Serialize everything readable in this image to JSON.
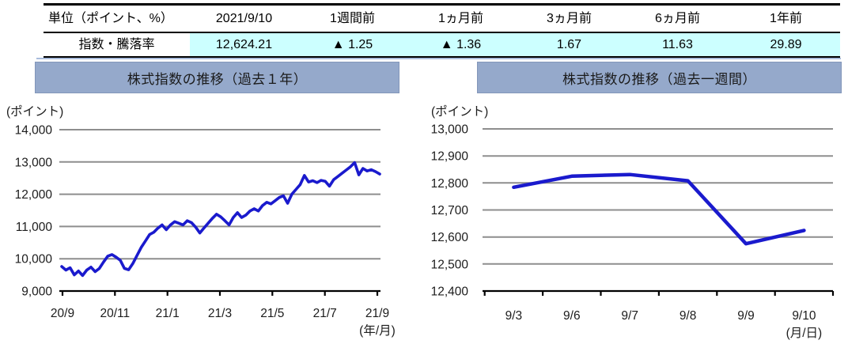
{
  "table": {
    "headers": [
      "単位（ポイント、%）",
      "2021/9/10",
      "1週間前",
      "1ヵ月前",
      "3ヵ月前",
      "6ヵ月前",
      "1年前"
    ],
    "row": {
      "label": "指数・騰落率",
      "values": [
        "12,624.21",
        "▲ 1.25",
        "▲ 1.36",
        "1.67",
        "11.63",
        "29.89"
      ]
    }
  },
  "colors": {
    "accent_bar": "#95a9cb",
    "highlight": "#ccffff",
    "line": "#1a1acd",
    "grid": "#8e8e8e",
    "axis": "#000000"
  },
  "chart_data": [
    {
      "type": "line",
      "title": "株式指数の推移（過去１年）",
      "y_axis_unit": "(ポイント)",
      "x_axis_unit": "(年/月)",
      "x_tick_labels": [
        "20/9",
        "20/11",
        "21/1",
        "21/3",
        "21/5",
        "21/7",
        "21/9"
      ],
      "y_ticks": [
        9000,
        10000,
        11000,
        12000,
        13000,
        14000
      ],
      "ylim": [
        9000,
        14000
      ],
      "grid": true,
      "legend": false,
      "series": [
        {
          "name": "株式指数",
          "values": [
            9760,
            9650,
            9720,
            9500,
            9620,
            9480,
            9650,
            9740,
            9600,
            9700,
            9900,
            10080,
            10130,
            10050,
            9950,
            9700,
            9660,
            9850,
            10100,
            10350,
            10550,
            10750,
            10820,
            10950,
            11050,
            10900,
            11050,
            11150,
            11100,
            11050,
            11180,
            11120,
            10980,
            10800,
            10950,
            11100,
            11250,
            11380,
            11300,
            11180,
            11050,
            11280,
            11430,
            11280,
            11350,
            11480,
            11550,
            11480,
            11650,
            11750,
            11700,
            11800,
            11900,
            11950,
            11720,
            12000,
            12150,
            12300,
            12580,
            12380,
            12420,
            12360,
            12430,
            12400,
            12250,
            12450,
            12550,
            12650,
            12750,
            12850,
            12980,
            12600,
            12800,
            12720,
            12760,
            12700,
            12624.21
          ]
        }
      ]
    },
    {
      "type": "line",
      "title": "株式指数の推移（過去一週間）",
      "y_axis_unit": "(ポイント)",
      "x_axis_unit": "(月/日)",
      "categories": [
        "9/3",
        "9/6",
        "9/7",
        "9/8",
        "9/9",
        "9/10"
      ],
      "values": [
        12784,
        12825,
        12831,
        12808,
        12575,
        12624.21
      ],
      "y_ticks": [
        12400,
        12500,
        12600,
        12700,
        12800,
        12900,
        13000
      ],
      "ylim": [
        12400,
        13000
      ],
      "grid": true,
      "legend": false
    }
  ]
}
